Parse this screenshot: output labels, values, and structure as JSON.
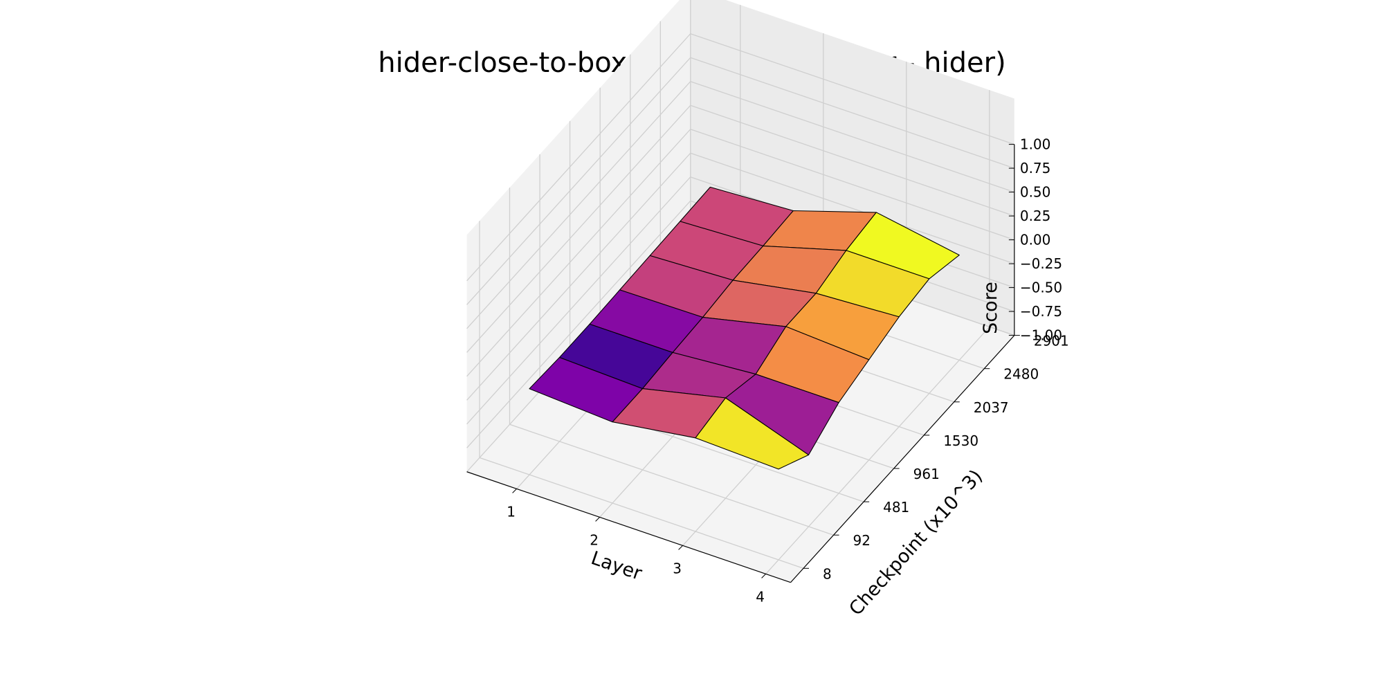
{
  "chart_data": {
    "type": "surface3d",
    "title": "hider-close-to-box - difference(seeker - hider)",
    "xlabel": "Layer",
    "ylabel": "Checkpoint (x10^3)",
    "zlabel": "Score",
    "x_ticks": [
      "1",
      "2",
      "3",
      "4"
    ],
    "y_ticks": [
      "8",
      "92",
      "481",
      "961",
      "1530",
      "2037",
      "2480",
      "2901"
    ],
    "z_ticks": [
      "−1.00",
      "−0.75",
      "−0.50",
      "−0.25",
      "0.00",
      "0.25",
      "0.50",
      "0.75",
      "1.00"
    ],
    "zlim": [
      -1,
      1
    ],
    "colormap": "plasma",
    "layers": [
      1,
      2,
      3,
      4
    ],
    "checkpoints": [
      8,
      92,
      481,
      961,
      1530,
      2037,
      2480
    ],
    "z": [
      [
        -0.1,
        -0.12,
        -0.12,
        -0.11,
        -0.1,
        -0.09,
        -0.08
      ],
      [
        -0.15,
        -0.15,
        -0.12,
        -0.1,
        -0.06,
        -0.05,
        -0.03
      ],
      [
        -0.02,
        0.05,
        -0.05,
        0.1,
        0.1,
        0.2,
        0.25
      ],
      [
        -0.05,
        -0.25,
        -0.05,
        0.05,
        0.15,
        0.2,
        0.1
      ]
    ],
    "face_values": [
      [
        -0.5,
        -0.75,
        -0.45,
        -0.05,
        0.0,
        0.0
      ],
      [
        0.05,
        -0.2,
        -0.25,
        0.2,
        0.35,
        0.4
      ],
      [
        0.9,
        -0.3,
        0.45,
        0.55,
        0.85,
        1.0
      ]
    ]
  }
}
